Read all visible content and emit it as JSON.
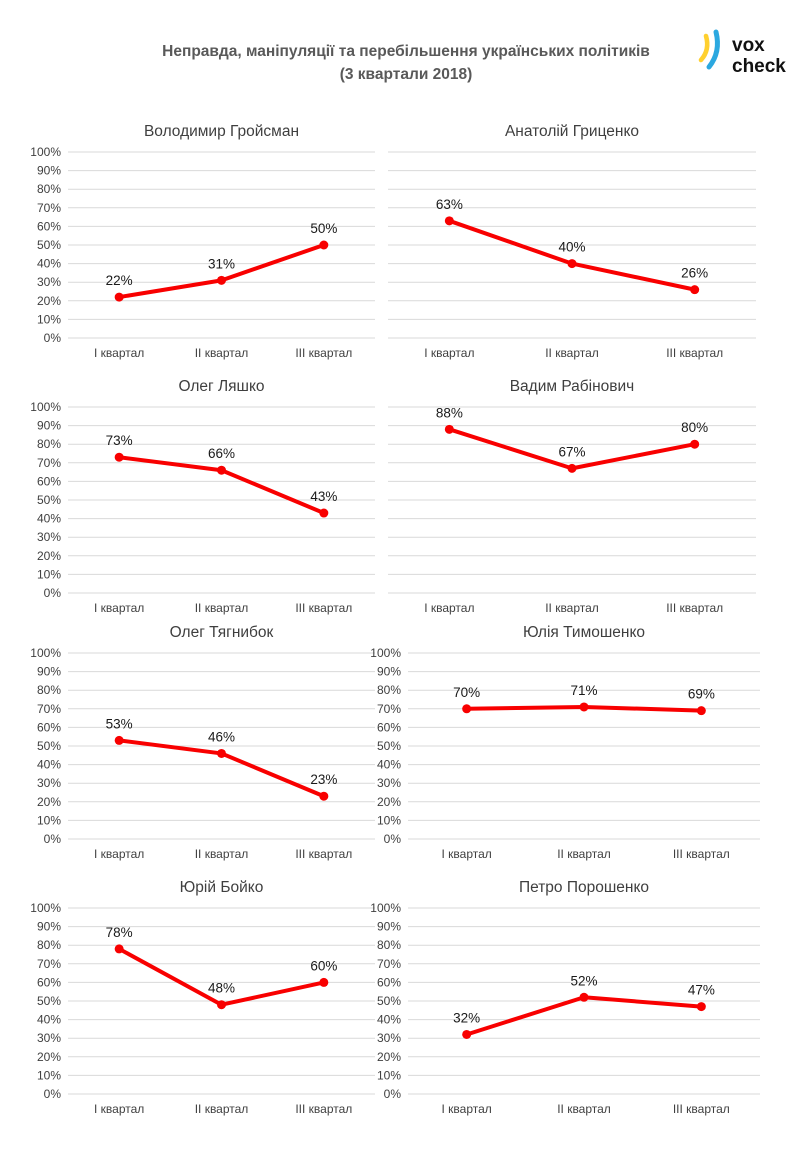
{
  "header": {
    "title_line1": "Неправда, маніпуляції та перебільшення українських політиків",
    "title_line2": "(3 квартали 2018)"
  },
  "logo": {
    "word1": "vox",
    "word2": "check",
    "arc_yellow": "#FFD02F",
    "arc_blue": "#2BA8E0",
    "text_color": "#111111"
  },
  "colors": {
    "line": "#F80000",
    "grid": "#D9D9D9",
    "axis_text": "#404040",
    "title_text": "#3F3F3F",
    "data_label_text": "#1A1A1A"
  },
  "y_axis": {
    "range": [
      0,
      100
    ],
    "tick_step": 10,
    "tick_labels": [
      "0%",
      "10%",
      "20%",
      "30%",
      "40%",
      "50%",
      "60%",
      "70%",
      "80%",
      "90%",
      "100%"
    ]
  },
  "chart_data": [
    {
      "type": "line",
      "title": "Володимир Гройсман",
      "categories": [
        "І квартал",
        "ІІ квартал",
        "ІІІ квартал"
      ],
      "values": [
        22,
        31,
        50
      ],
      "data_labels": [
        "22%",
        "31%",
        "50%"
      ],
      "ylim": [
        0,
        100
      ],
      "grid": true,
      "y_axis_labels_visible": true
    },
    {
      "type": "line",
      "title": "Анатолій Гриценко",
      "categories": [
        "І квартал",
        "ІІ квартал",
        "ІІІ квартал"
      ],
      "values": [
        63,
        40,
        26
      ],
      "data_labels": [
        "63%",
        "40%",
        "26%"
      ],
      "ylim": [
        0,
        100
      ],
      "grid": true,
      "y_axis_labels_visible": false
    },
    {
      "type": "line",
      "title": "Олег Ляшко",
      "categories": [
        "І квартал",
        "ІІ квартал",
        "ІІІ квартал"
      ],
      "values": [
        73,
        66,
        43
      ],
      "data_labels": [
        "73%",
        "66%",
        "43%"
      ],
      "ylim": [
        0,
        100
      ],
      "grid": true,
      "y_axis_labels_visible": true
    },
    {
      "type": "line",
      "title": "Вадим Рабінович",
      "categories": [
        "І квартал",
        "ІІ квартал",
        "ІІІ квартал"
      ],
      "values": [
        88,
        67,
        80
      ],
      "data_labels": [
        "88%",
        "67%",
        "80%"
      ],
      "ylim": [
        0,
        100
      ],
      "grid": true,
      "y_axis_labels_visible": false
    },
    {
      "type": "line",
      "title": "Олег Тягнибок",
      "categories": [
        "І квартал",
        "ІІ квартал",
        "ІІІ квартал"
      ],
      "values": [
        53,
        46,
        23
      ],
      "data_labels": [
        "53%",
        "46%",
        "23%"
      ],
      "ylim": [
        0,
        100
      ],
      "grid": true,
      "y_axis_labels_visible": true
    },
    {
      "type": "line",
      "title": "Юлія Тимошенко",
      "categories": [
        "І квартал",
        "ІІ квартал",
        "ІІІ квартал"
      ],
      "values": [
        70,
        71,
        69
      ],
      "data_labels": [
        "70%",
        "71%",
        "69%"
      ],
      "ylim": [
        0,
        100
      ],
      "grid": true,
      "y_axis_labels_visible": true
    },
    {
      "type": "line",
      "title": "Юрій Бойко",
      "categories": [
        "І квартал",
        "ІІ квартал",
        "ІІІ квартал"
      ],
      "values": [
        78,
        48,
        60
      ],
      "data_labels": [
        "78%",
        "48%",
        "60%"
      ],
      "ylim": [
        0,
        100
      ],
      "grid": true,
      "y_axis_labels_visible": true
    },
    {
      "type": "line",
      "title": "Петро Порошенко",
      "categories": [
        "І квартал",
        "ІІ квартал",
        "ІІІ квартал"
      ],
      "values": [
        32,
        52,
        47
      ],
      "data_labels": [
        "32%",
        "52%",
        "47%"
      ],
      "ylim": [
        0,
        100
      ],
      "grid": true,
      "y_axis_labels_visible": true
    }
  ]
}
